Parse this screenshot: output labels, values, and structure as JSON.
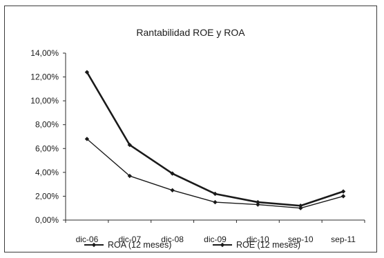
{
  "chart_data": {
    "type": "line",
    "title": "Rantabilidad ROE y ROA",
    "categories": [
      "dic-06",
      "dic-07",
      "dic-08",
      "dic-09",
      "dic-10",
      "sep-10",
      "sep-11"
    ],
    "yticks": [
      "0,00%",
      "2,00%",
      "4,00%",
      "6,00%",
      "8,00%",
      "10,00%",
      "12,00%",
      "14,00%"
    ],
    "ylim": [
      0,
      14
    ],
    "grid": false,
    "legend_position": "bottom",
    "series": [
      {
        "name": "ROA (12 meses)",
        "values": [
          6.8,
          3.7,
          2.5,
          1.5,
          1.3,
          1.0,
          2.0
        ],
        "color": "#1a1a1a"
      },
      {
        "name": "ROE (12 meses)",
        "values": [
          12.4,
          6.3,
          3.9,
          2.2,
          1.5,
          1.2,
          2.4
        ],
        "color": "#1a1a1a"
      }
    ]
  }
}
